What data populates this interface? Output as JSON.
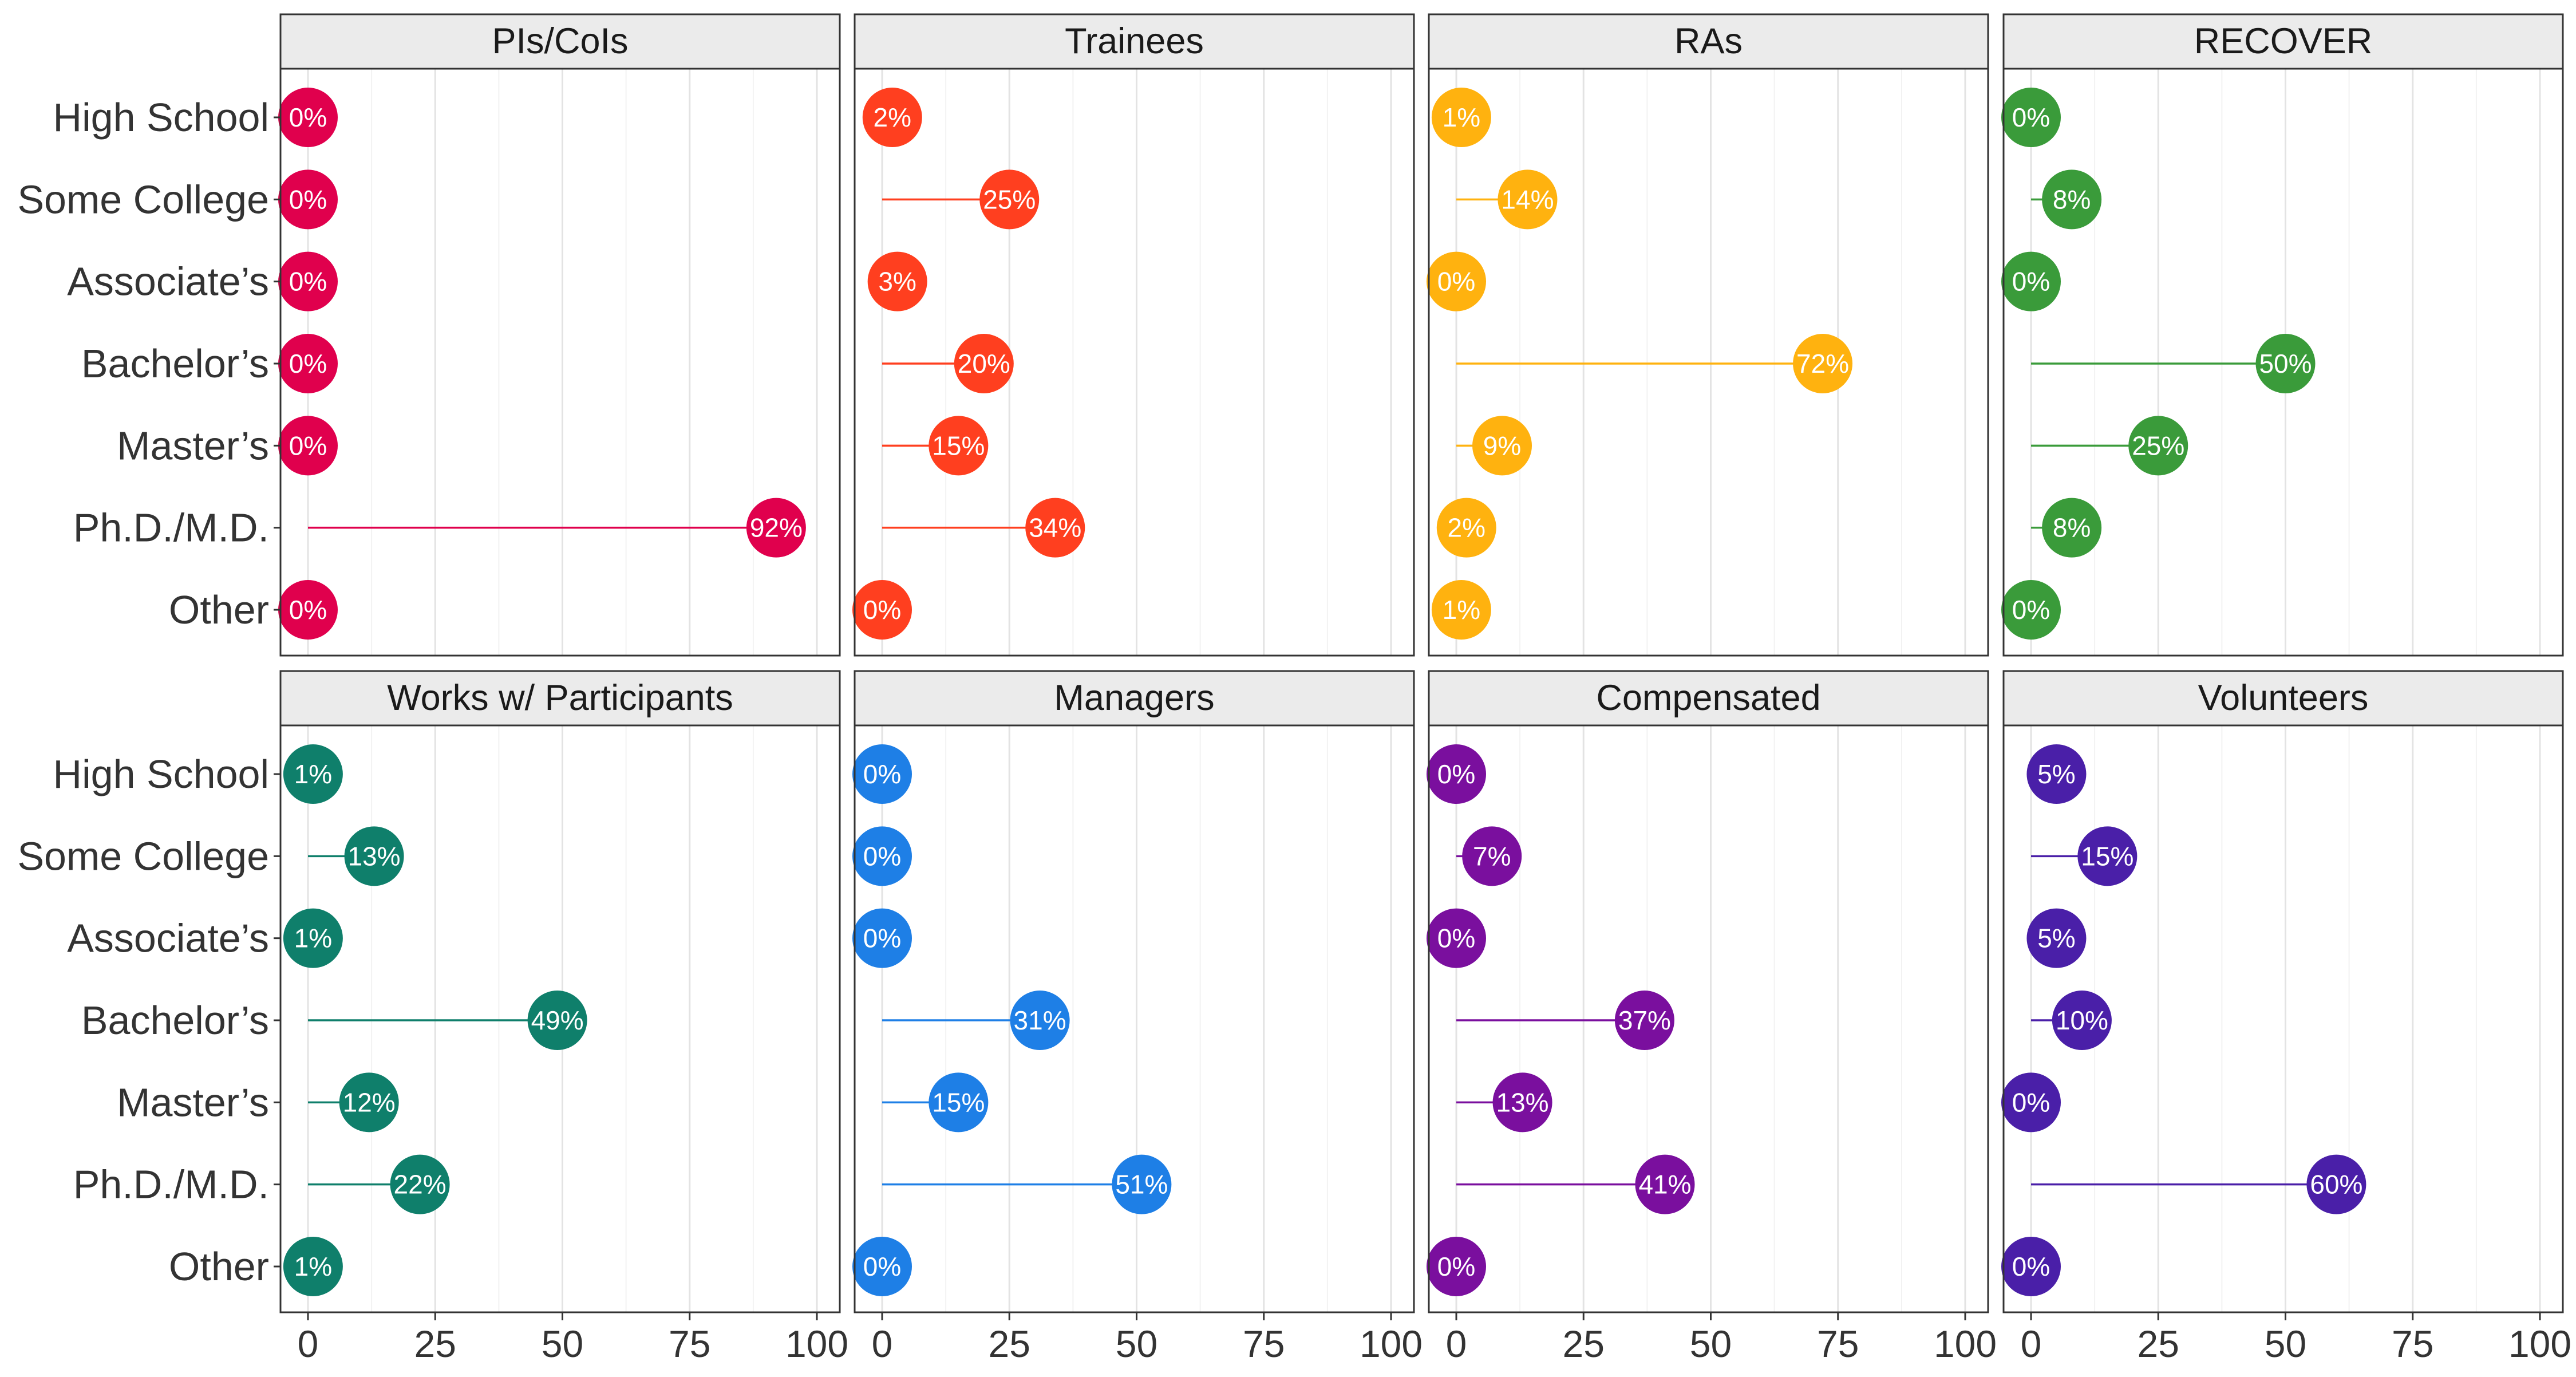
{
  "chart_data": {
    "type": "lollipop",
    "categories": [
      "High School",
      "Some College",
      "Associate’s",
      "Bachelor’s",
      "Master’s",
      "Ph.D./M.D.",
      "Other"
    ],
    "xlim": [
      0,
      100
    ],
    "x_ticks": [
      "0",
      "25",
      "50",
      "75",
      "100"
    ],
    "x_tick_values": [
      0,
      25,
      50,
      75,
      100
    ],
    "grid": "vertical major and minor",
    "value_suffix": "%",
    "panels": [
      {
        "name": "PIs/CoIs",
        "color": "#E0004D",
        "values": [
          0,
          0,
          0,
          0,
          0,
          92,
          0
        ]
      },
      {
        "name": "Trainees",
        "color": "#FF3F1F",
        "values": [
          2,
          25,
          3,
          20,
          15,
          34,
          0
        ]
      },
      {
        "name": "RAs",
        "color": "#FFB20F",
        "values": [
          1,
          14,
          0,
          72,
          9,
          2,
          1
        ]
      },
      {
        "name": "RECOVER",
        "color": "#3A9B3A",
        "values": [
          0,
          8,
          0,
          50,
          25,
          8,
          0
        ]
      },
      {
        "name": "Works w/ Participants",
        "color": "#0F7F6B",
        "values": [
          1,
          13,
          1,
          49,
          12,
          22,
          1
        ]
      },
      {
        "name": "Managers",
        "color": "#1E7FE6",
        "values": [
          0,
          0,
          0,
          31,
          15,
          51,
          0
        ]
      },
      {
        "name": "Compensated",
        "color": "#7A0F9E",
        "values": [
          0,
          7,
          0,
          37,
          13,
          41,
          0
        ]
      },
      {
        "name": "Volunteers",
        "color": "#4A1FA8",
        "values": [
          5,
          15,
          5,
          10,
          0,
          60,
          0
        ]
      }
    ]
  }
}
